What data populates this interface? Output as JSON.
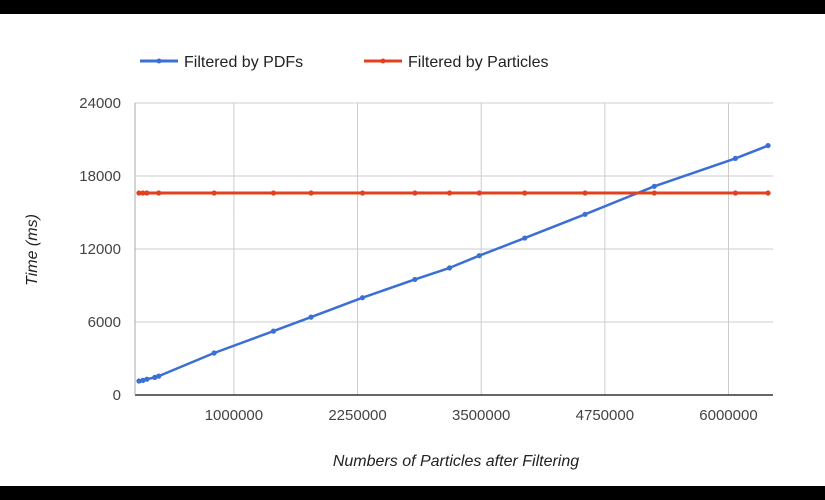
{
  "chart_data": {
    "type": "line",
    "title": "",
    "xlabel": "Numbers of Particles after Filtering",
    "ylabel": "Time (ms)",
    "xlim": [
      0,
      6450000
    ],
    "ylim": [
      0,
      24000
    ],
    "x_ticks": [
      1000000,
      2250000,
      3500000,
      4750000,
      6000000
    ],
    "y_ticks": [
      0,
      6000,
      12000,
      18000,
      24000
    ],
    "x_tick_labels": [
      "1000000",
      "2250000",
      "3500000",
      "4750000",
      "6000000"
    ],
    "y_tick_labels": [
      "0",
      "6000",
      "12000",
      "18000",
      "24000"
    ],
    "grid": true,
    "legend_position": "top",
    "series": [
      {
        "name": "Filtered by PDFs",
        "color": "#3b6fd4",
        "points": [
          [
            40000,
            1150
          ],
          [
            80000,
            1200
          ],
          [
            120000,
            1300
          ],
          [
            200000,
            1450
          ],
          [
            240000,
            1550
          ],
          [
            800000,
            3450
          ],
          [
            1400000,
            5250
          ],
          [
            1780000,
            6400
          ],
          [
            2300000,
            8000
          ],
          [
            2830000,
            9500
          ],
          [
            3180000,
            10450
          ],
          [
            3480000,
            11450
          ],
          [
            3940000,
            12900
          ],
          [
            4550000,
            14850
          ],
          [
            5250000,
            17150
          ],
          [
            6070000,
            19450
          ],
          [
            6400000,
            20500
          ]
        ]
      },
      {
        "name": "Filtered by Particles",
        "color": "#e0411f",
        "points": [
          [
            40000,
            16600
          ],
          [
            80000,
            16600
          ],
          [
            120000,
            16600
          ],
          [
            240000,
            16600
          ],
          [
            800000,
            16600
          ],
          [
            1400000,
            16600
          ],
          [
            1780000,
            16600
          ],
          [
            2300000,
            16600
          ],
          [
            2830000,
            16600
          ],
          [
            3180000,
            16600
          ],
          [
            3480000,
            16600
          ],
          [
            3940000,
            16600
          ],
          [
            4550000,
            16600
          ],
          [
            5250000,
            16600
          ],
          [
            6070000,
            16600
          ],
          [
            6400000,
            16600
          ]
        ]
      }
    ]
  }
}
